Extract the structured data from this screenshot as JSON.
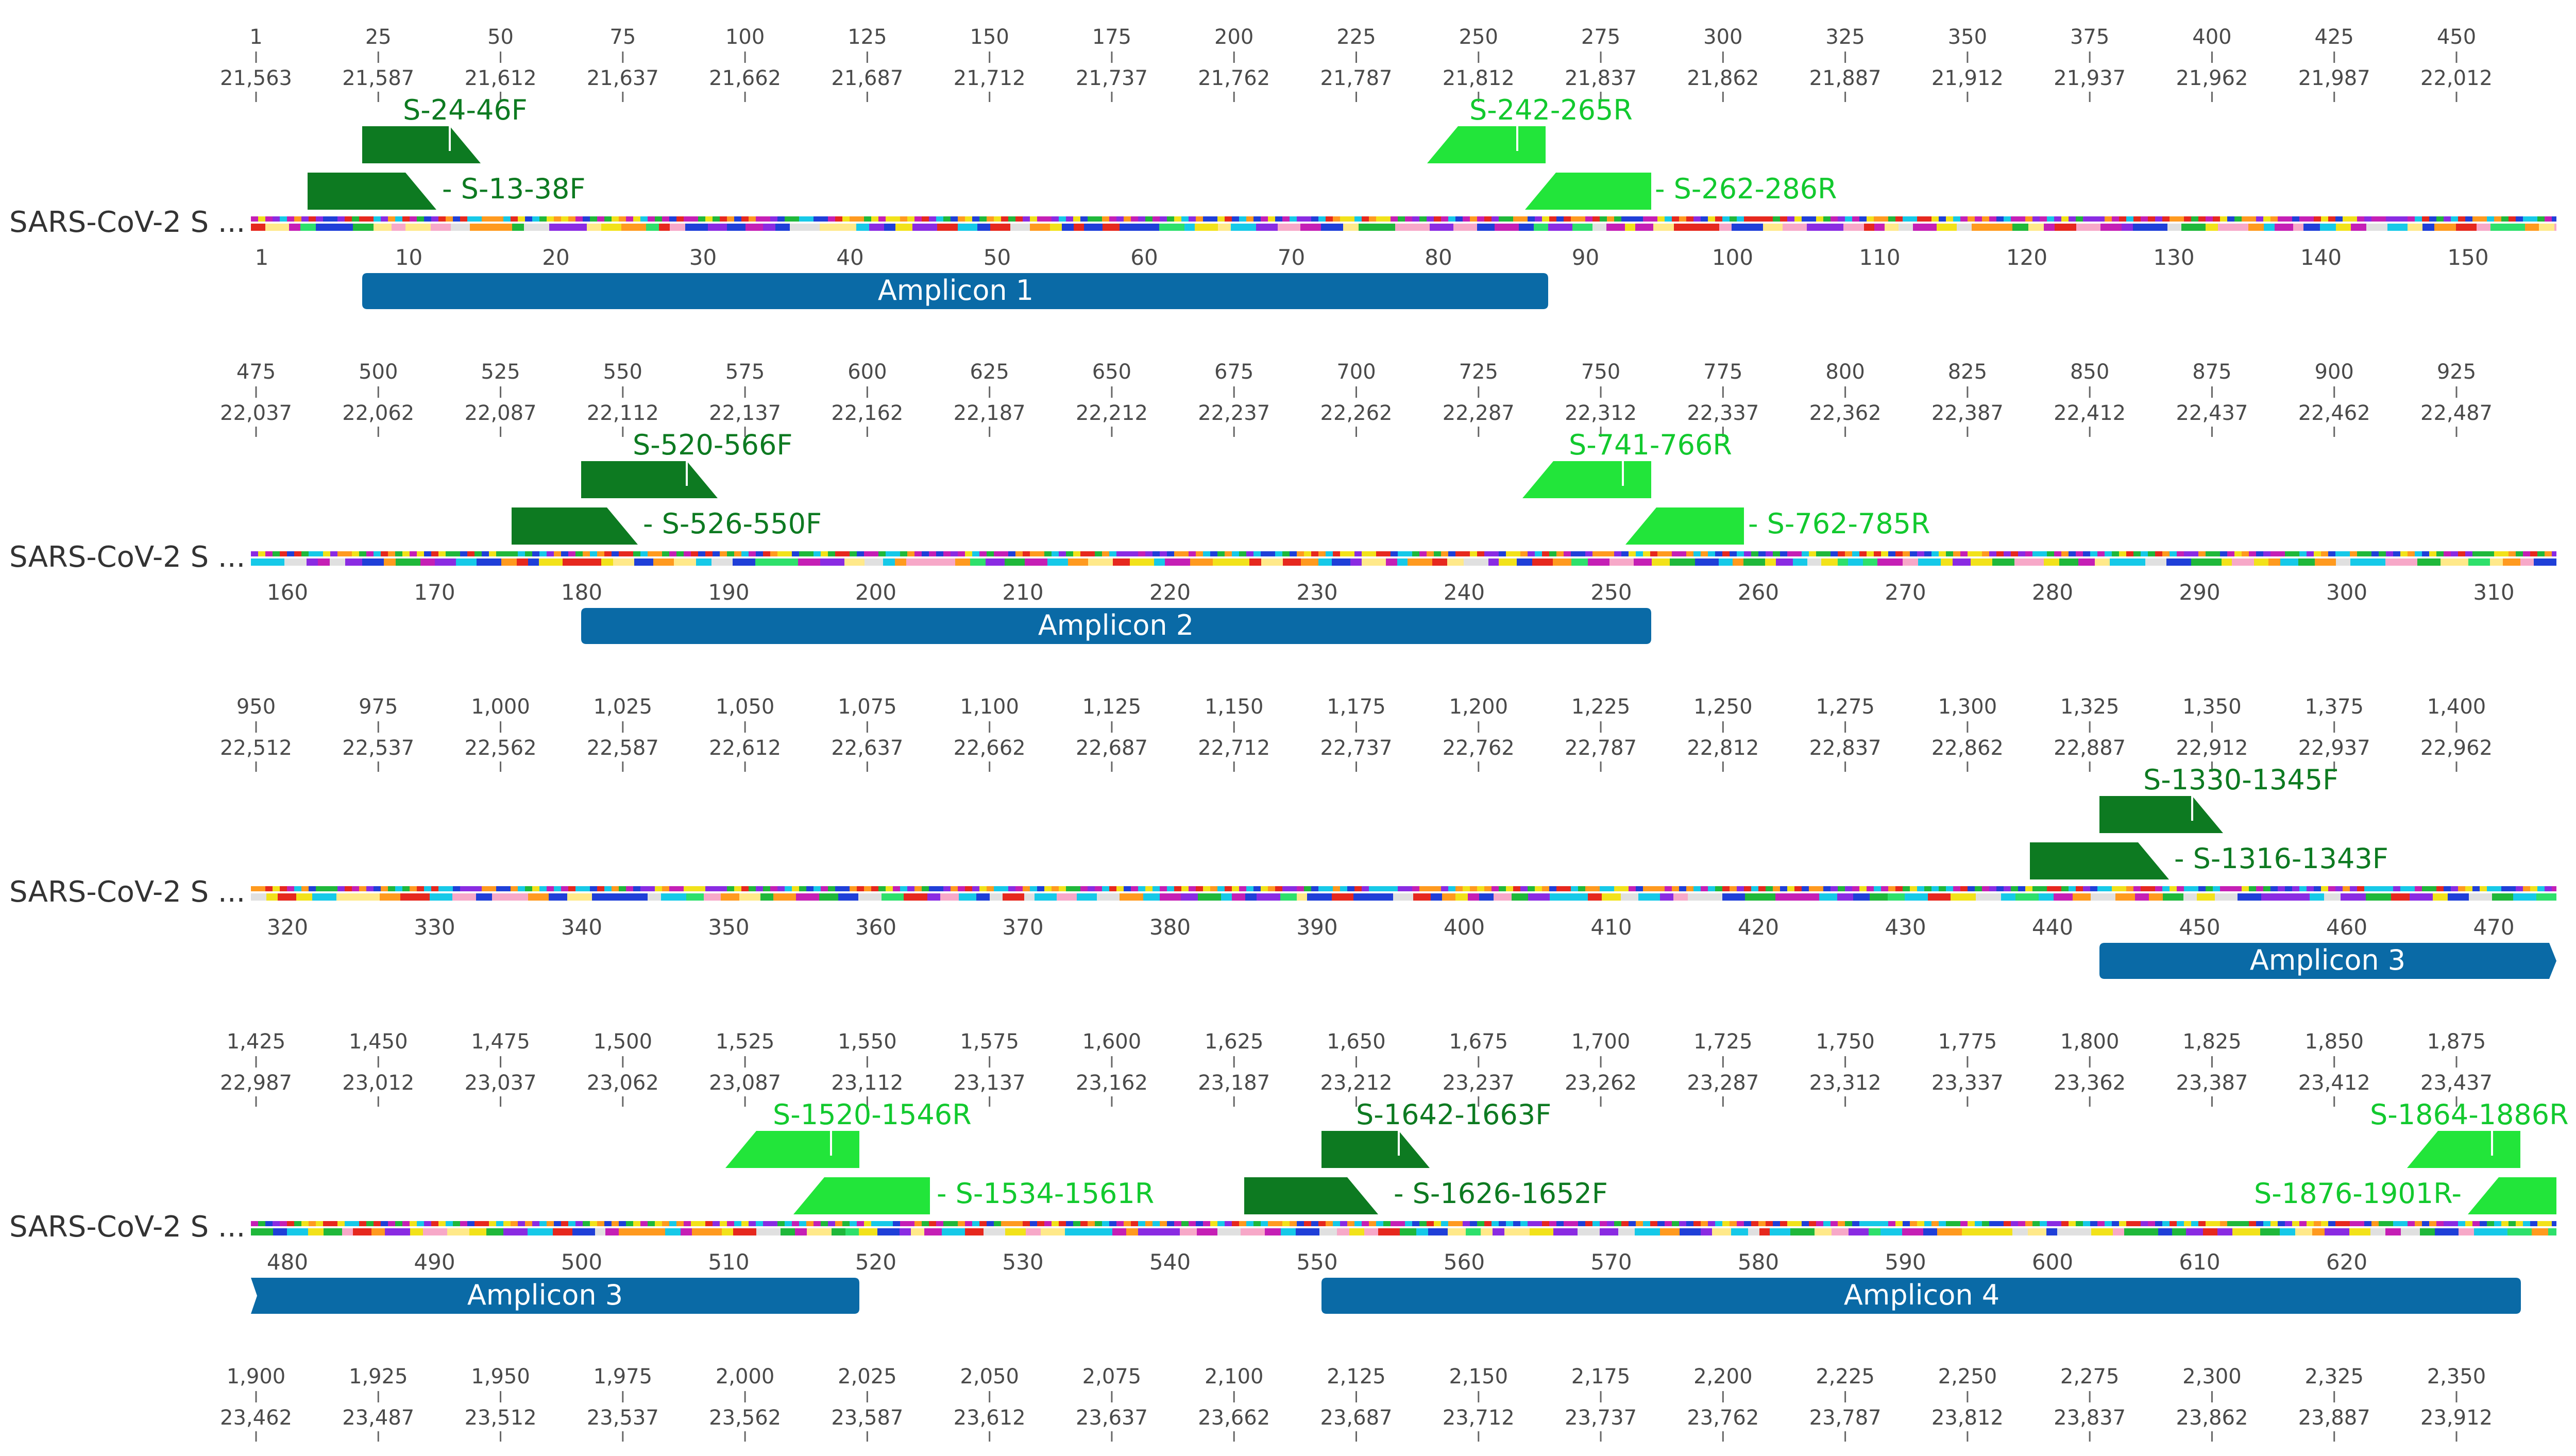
{
  "colors": {
    "primer_forward": "#0d7a21",
    "primer_reverse": "#22e53a",
    "label_forward": "#0d7a21",
    "label_reverse": "#12c92e",
    "amplicon": "#0a6aa6",
    "tick": "#666666",
    "residue_palette": [
      "#e6281e",
      "#1f3fd8",
      "#f2e21a",
      "#1fb83a",
      "#c51fb5",
      "#16c9e8",
      "#ff9a1f",
      "#8a2be2",
      "#f7a8c8",
      "#2ee06b",
      "#e0e0e0",
      "#ffe98a"
    ]
  },
  "rows": [
    {
      "sequence_label": "SARS-CoV-2 S ...",
      "nt_ticks": [
        "1",
        "25",
        "50",
        "75",
        "100",
        "125",
        "150",
        "175",
        "200",
        "225",
        "250",
        "275",
        "300",
        "325",
        "350",
        "375",
        "400",
        "425",
        "450"
      ],
      "genome_ticks": [
        "21,563",
        "21,587",
        "21,612",
        "21,637",
        "21,662",
        "21,687",
        "21,712",
        "21,737",
        "21,762",
        "21,787",
        "21,812",
        "21,837",
        "21,862",
        "21,887",
        "21,912",
        "21,937",
        "21,962",
        "21,987",
        "22,012"
      ],
      "aa_ticks": [
        "1",
        "10",
        "20",
        "30",
        "40",
        "50",
        "60",
        "70",
        "80",
        "90",
        "100",
        "110",
        "120",
        "130",
        "140",
        "150"
      ],
      "primers": [
        {
          "label": "S-24-46F",
          "direction": "forward"
        },
        {
          "label": "S-13-38F",
          "direction": "forward"
        },
        {
          "label": "S-242-265R",
          "direction": "reverse"
        },
        {
          "label": "S-262-286R",
          "direction": "reverse"
        }
      ],
      "amplicons": [
        {
          "label": "Amplicon 1"
        }
      ]
    },
    {
      "sequence_label": "SARS-CoV-2 S ...",
      "nt_ticks": [
        "475",
        "500",
        "525",
        "550",
        "575",
        "600",
        "625",
        "650",
        "675",
        "700",
        "725",
        "750",
        "775",
        "800",
        "825",
        "850",
        "875",
        "900",
        "925"
      ],
      "genome_ticks": [
        "22,037",
        "22,062",
        "22,087",
        "22,112",
        "22,137",
        "22,162",
        "22,187",
        "22,212",
        "22,237",
        "22,262",
        "22,287",
        "22,312",
        "22,337",
        "22,362",
        "22,387",
        "22,412",
        "22,437",
        "22,462",
        "22,487"
      ],
      "aa_ticks": [
        "160",
        "170",
        "180",
        "190",
        "200",
        "210",
        "220",
        "230",
        "240",
        "250",
        "260",
        "270",
        "280",
        "290",
        "300",
        "310"
      ],
      "primers": [
        {
          "label": "S-520-566F",
          "direction": "forward"
        },
        {
          "label": "S-526-550F",
          "direction": "forward"
        },
        {
          "label": "S-741-766R",
          "direction": "reverse"
        },
        {
          "label": "S-762-785R",
          "direction": "reverse"
        }
      ],
      "amplicons": [
        {
          "label": "Amplicon 2"
        }
      ]
    },
    {
      "sequence_label": "SARS-CoV-2 S ...",
      "nt_ticks": [
        "950",
        "975",
        "1,000",
        "1,025",
        "1,050",
        "1,075",
        "1,100",
        "1,125",
        "1,150",
        "1,175",
        "1,200",
        "1,225",
        "1,250",
        "1,275",
        "1,300",
        "1,325",
        "1,350",
        "1,375",
        "1,400"
      ],
      "genome_ticks": [
        "22,512",
        "22,537",
        "22,562",
        "22,587",
        "22,612",
        "22,637",
        "22,662",
        "22,687",
        "22,712",
        "22,737",
        "22,762",
        "22,787",
        "22,812",
        "22,837",
        "22,862",
        "22,887",
        "22,912",
        "22,937",
        "22,962"
      ],
      "aa_ticks": [
        "320",
        "330",
        "340",
        "350",
        "360",
        "370",
        "380",
        "390",
        "400",
        "410",
        "420",
        "430",
        "440",
        "450",
        "460",
        "470"
      ],
      "primers": [
        {
          "label": "S-1330-1345F",
          "direction": "forward"
        },
        {
          "label": "S-1316-1343F",
          "direction": "forward"
        }
      ],
      "amplicons": [
        {
          "label": "Amplicon 3"
        }
      ]
    },
    {
      "sequence_label": "SARS-CoV-2 S ...",
      "nt_ticks": [
        "1,425",
        "1,450",
        "1,475",
        "1,500",
        "1,525",
        "1,550",
        "1,575",
        "1,600",
        "1,625",
        "1,650",
        "1,675",
        "1,700",
        "1,725",
        "1,750",
        "1,775",
        "1,800",
        "1,825",
        "1,850",
        "1,875"
      ],
      "genome_ticks": [
        "22,987",
        "23,012",
        "23,037",
        "23,062",
        "23,087",
        "23,112",
        "23,137",
        "23,162",
        "23,187",
        "23,212",
        "23,237",
        "23,262",
        "23,287",
        "23,312",
        "23,337",
        "23,362",
        "23,387",
        "23,412",
        "23,437"
      ],
      "aa_ticks": [
        "480",
        "490",
        "500",
        "510",
        "520",
        "530",
        "540",
        "550",
        "560",
        "570",
        "580",
        "590",
        "600",
        "610",
        "620"
      ],
      "primers": [
        {
          "label": "S-1520-1546R",
          "direction": "reverse"
        },
        {
          "label": "S-1534-1561R",
          "direction": "reverse"
        },
        {
          "label": "S-1642-1663F",
          "direction": "forward"
        },
        {
          "label": "S-1626-1652F",
          "direction": "forward"
        },
        {
          "label": "S-1864-1886R",
          "direction": "reverse"
        },
        {
          "label": "S-1876-1901R",
          "direction": "reverse"
        }
      ],
      "amplicons": [
        {
          "label": "Amplicon 3"
        },
        {
          "label": "Amplicon 4"
        }
      ]
    }
  ],
  "bottom_ruler": {
    "nt_ticks": [
      "1,900",
      "1,925",
      "1,950",
      "1,975",
      "2,000",
      "2,025",
      "2,050",
      "2,075",
      "2,100",
      "2,125",
      "2,150",
      "2,175",
      "2,200",
      "2,225",
      "2,250",
      "2,275",
      "2,300",
      "2,325",
      "2,350"
    ],
    "genome_ticks": [
      "23,462",
      "23,487",
      "23,512",
      "23,537",
      "23,562",
      "23,587",
      "23,612",
      "23,637",
      "23,662",
      "23,687",
      "23,712",
      "23,737",
      "23,762",
      "23,787",
      "23,812",
      "23,837",
      "23,862",
      "23,887",
      "23,912"
    ]
  }
}
